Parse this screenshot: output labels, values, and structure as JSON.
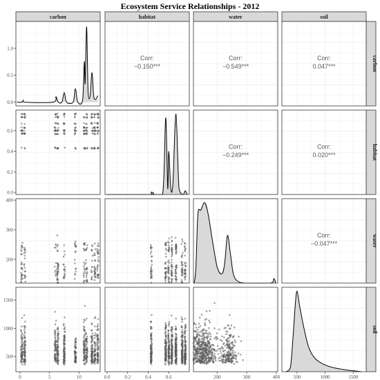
{
  "chart_data": {
    "type": "scatter-matrix",
    "title": "Ecosystem Service Relationships - 2012",
    "variables": [
      "carbon",
      "habitat",
      "water",
      "soil"
    ],
    "axes": {
      "carbon": {
        "range": [
          -0.7,
          13.6
        ],
        "ticks": [
          0,
          5,
          10
        ]
      },
      "habitat": {
        "range": [
          -0.02,
          0.8
        ],
        "ticks": [
          0.0,
          0.2,
          0.4,
          0.6
        ]
      },
      "water": {
        "range": [
          120,
          405
        ],
        "ticks": [
          200,
          300,
          400
        ]
      },
      "soil": {
        "range": [
          230,
          1730
        ],
        "ticks": [
          500,
          1000,
          1500
        ]
      }
    },
    "density_ylim": {
      "carbon": [
        -0.07,
        1.5
      ]
    },
    "density_yticks": {
      "carbon": [
        0.0,
        0.5,
        1.0
      ]
    },
    "correlations": [
      {
        "row": "carbon",
        "col": "habitat",
        "label": "Corr:",
        "value": "−0.150***"
      },
      {
        "row": "carbon",
        "col": "water",
        "label": "Corr:",
        "value": "−0.549***"
      },
      {
        "row": "carbon",
        "col": "soil",
        "label": "Corr:",
        "value": "0.047***"
      },
      {
        "row": "habitat",
        "col": "water",
        "label": "Corr:",
        "value": "−0.249***"
      },
      {
        "row": "habitat",
        "col": "soil",
        "label": "Corr:",
        "value": "0.020***"
      },
      {
        "row": "water",
        "col": "soil",
        "label": "Corr:",
        "value": "−0.047***"
      }
    ],
    "densities": {
      "carbon": [
        [
          -0.5,
          0.0
        ],
        [
          0.3,
          0.0
        ],
        [
          0.6,
          0.04
        ],
        [
          0.9,
          0.0
        ],
        [
          5.6,
          0.0
        ],
        [
          6.1,
          0.1
        ],
        [
          6.5,
          0.0
        ],
        [
          7.1,
          0.0
        ],
        [
          7.5,
          0.18
        ],
        [
          7.9,
          0.0
        ],
        [
          9.0,
          0.0
        ],
        [
          9.4,
          0.25
        ],
        [
          9.8,
          0.0
        ],
        [
          10.6,
          0.02
        ],
        [
          10.9,
          0.75
        ],
        [
          11.05,
          0.35
        ],
        [
          11.3,
          1.4
        ],
        [
          11.55,
          0.2
        ],
        [
          11.9,
          0.12
        ],
        [
          12.2,
          0.55
        ],
        [
          12.5,
          0.12
        ],
        [
          12.8,
          0.05
        ],
        [
          13.2,
          0.12
        ]
      ],
      "habitat": [
        [
          0.0,
          0.0
        ],
        [
          0.42,
          0.0
        ],
        [
          0.43,
          0.02
        ],
        [
          0.44,
          0.0
        ],
        [
          0.54,
          0.0
        ],
        [
          0.57,
          0.62
        ],
        [
          0.59,
          0.05
        ],
        [
          0.6,
          0.35
        ],
        [
          0.62,
          0.05
        ],
        [
          0.64,
          0.08
        ],
        [
          0.67,
          0.65
        ],
        [
          0.7,
          0.05
        ],
        [
          0.74,
          0.0
        ],
        [
          0.76,
          0.03
        ],
        [
          0.78,
          0.0
        ]
      ],
      "water": [
        [
          122,
          0.0
        ],
        [
          128,
          0.15
        ],
        [
          135,
          0.75
        ],
        [
          145,
          0.8
        ],
        [
          158,
          0.88
        ],
        [
          170,
          0.75
        ],
        [
          185,
          0.45
        ],
        [
          200,
          0.18
        ],
        [
          215,
          0.1
        ],
        [
          225,
          0.2
        ],
        [
          235,
          0.52
        ],
        [
          245,
          0.32
        ],
        [
          255,
          0.1
        ],
        [
          270,
          0.02
        ],
        [
          300,
          0.0
        ],
        [
          380,
          0.0
        ],
        [
          392,
          0.05
        ],
        [
          398,
          0.0
        ]
      ],
      "soil": [
        [
          300,
          0.0
        ],
        [
          380,
          0.05
        ],
        [
          430,
          0.45
        ],
        [
          470,
          0.85
        ],
        [
          500,
          1.0
        ],
        [
          550,
          0.8
        ],
        [
          620,
          0.55
        ],
        [
          700,
          0.32
        ],
        [
          800,
          0.18
        ],
        [
          950,
          0.1
        ],
        [
          1150,
          0.05
        ],
        [
          1400,
          0.02
        ],
        [
          1650,
          0.0
        ]
      ]
    },
    "carbon_clusters": [
      0.3,
      0.8,
      6.0,
      6.4,
      7.5,
      9.4,
      10.9,
      11.3,
      12.2,
      12.7,
      13.2
    ],
    "habitat_clusters": [
      0.43,
      0.57,
      0.6,
      0.63,
      0.67,
      0.73,
      0.76
    ],
    "grid": true,
    "point_color": "#595959",
    "density_fill": "#d9d9d9",
    "strip_fill": "#d9d9d9",
    "panel_border": "#333333",
    "grid_color": "#ebebeb"
  }
}
